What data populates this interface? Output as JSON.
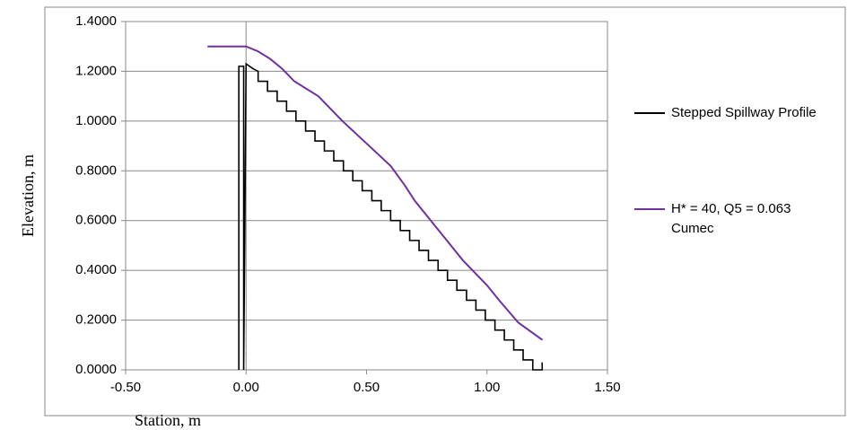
{
  "chart_data": {
    "type": "line",
    "ylabel": "Elevation, m",
    "xlabel": "Station, m",
    "xlim": [
      -0.5,
      1.5
    ],
    "xticks": [
      {
        "value": -0.5,
        "label": "-0.50"
      },
      {
        "value": 0,
        "label": "0.00"
      },
      {
        "value": 0.5,
        "label": "0.50"
      },
      {
        "value": 1,
        "label": "1.00"
      },
      {
        "value": 1.5,
        "label": "1.50"
      }
    ],
    "ylim": [
      0,
      1.4
    ],
    "yticks": [
      {
        "value": 0,
        "label": "0.0000"
      },
      {
        "value": 0.2,
        "label": "0.2000"
      },
      {
        "value": 0.4,
        "label": "0.4000"
      },
      {
        "value": 0.6,
        "label": "0.6000"
      },
      {
        "value": 0.8,
        "label": "0.8000"
      },
      {
        "value": 1,
        "label": "1.0000"
      },
      {
        "value": 1.2,
        "label": "1.2000"
      },
      {
        "value": 1.4,
        "label": "1.4000"
      }
    ],
    "grid": true,
    "legend": "right",
    "series": [
      {
        "name": "Stepped Spillway Profile",
        "color": "#000000",
        "x": [
          -0.03,
          -0.03,
          -0.01,
          -0.01,
          0.0,
          0.03,
          0.05,
          0.05,
          0.089,
          0.089,
          0.129,
          0.129,
          0.168,
          0.168,
          0.207,
          0.207,
          0.247,
          0.247,
          0.286,
          0.286,
          0.325,
          0.325,
          0.364,
          0.364,
          0.404,
          0.404,
          0.443,
          0.443,
          0.482,
          0.482,
          0.522,
          0.522,
          0.561,
          0.561,
          0.6,
          0.6,
          0.64,
          0.64,
          0.679,
          0.679,
          0.718,
          0.718,
          0.757,
          0.757,
          0.797,
          0.797,
          0.836,
          0.836,
          0.875,
          0.875,
          0.915,
          0.915,
          0.954,
          0.954,
          0.993,
          0.993,
          1.033,
          1.033,
          1.072,
          1.072,
          1.111,
          1.111,
          1.15,
          1.15,
          1.19,
          1.19,
          1.229,
          1.229
        ],
        "values": [
          0.0,
          1.22,
          1.22,
          0.0,
          1.23,
          1.21,
          1.2,
          1.16,
          1.16,
          1.12,
          1.12,
          1.08,
          1.08,
          1.04,
          1.04,
          1.0,
          1.0,
          0.96,
          0.96,
          0.92,
          0.92,
          0.88,
          0.88,
          0.84,
          0.84,
          0.8,
          0.8,
          0.76,
          0.76,
          0.72,
          0.72,
          0.68,
          0.68,
          0.64,
          0.64,
          0.6,
          0.6,
          0.56,
          0.56,
          0.52,
          0.52,
          0.48,
          0.48,
          0.44,
          0.44,
          0.4,
          0.4,
          0.36,
          0.36,
          0.32,
          0.32,
          0.28,
          0.28,
          0.24,
          0.24,
          0.2,
          0.2,
          0.16,
          0.16,
          0.12,
          0.12,
          0.08,
          0.08,
          0.04,
          0.04,
          0.0,
          0.0,
          0.03
        ]
      },
      {
        "name": "H* = 40, Q5 = 0.063 Cumec",
        "color": "#7030a0",
        "x": [
          -0.16,
          0.0,
          0.05,
          0.1,
          0.15,
          0.2,
          0.3,
          0.4,
          0.5,
          0.6,
          0.66,
          0.7,
          0.8,
          0.9,
          1.0,
          1.05,
          1.13,
          1.23
        ],
        "values": [
          1.3,
          1.3,
          1.28,
          1.25,
          1.21,
          1.16,
          1.1,
          1.0,
          0.91,
          0.82,
          0.74,
          0.68,
          0.56,
          0.44,
          0.34,
          0.28,
          0.19,
          0.12
        ]
      }
    ]
  }
}
